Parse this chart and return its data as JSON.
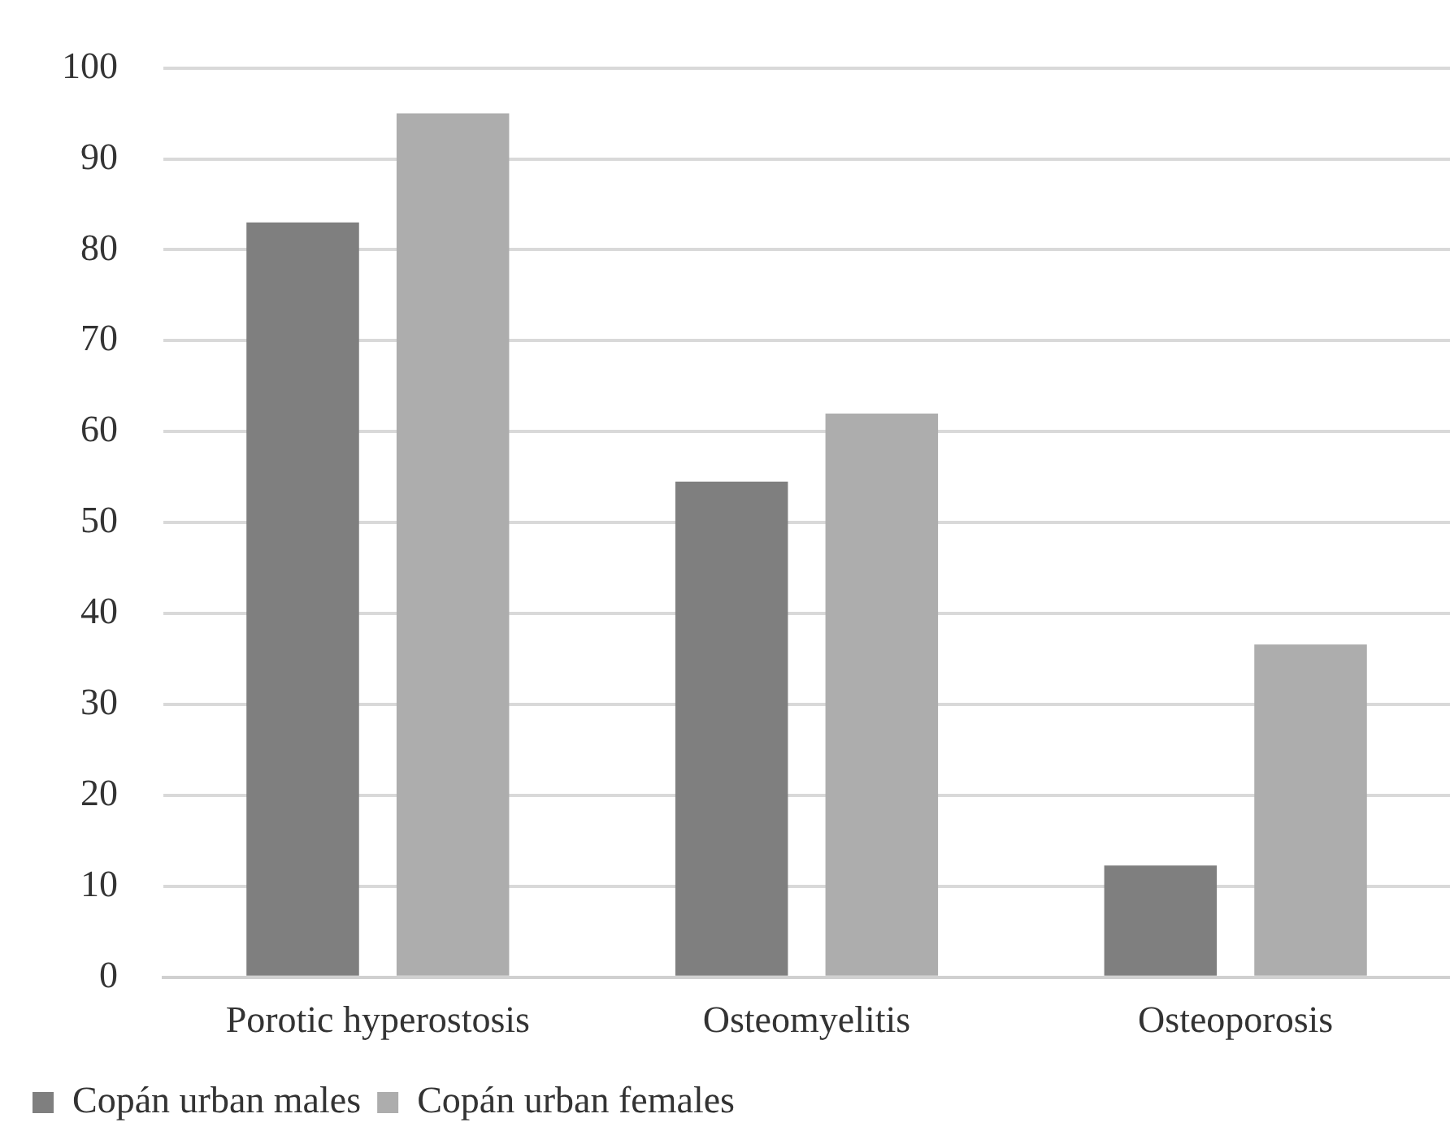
{
  "chart_data": {
    "type": "bar",
    "categories": [
      "Porotic hyperostosis",
      "Osteomyelitis",
      "Osteoporosis"
    ],
    "series": [
      {
        "name": "Copán urban males",
        "color": "#7f7f7f",
        "values": [
          83,
          54.5,
          12.3
        ]
      },
      {
        "name": "Copán urban females",
        "color": "#adadad",
        "values": [
          95,
          62,
          36.6
        ]
      }
    ],
    "ylim": [
      0,
      100
    ],
    "yticks": [
      0,
      10,
      20,
      30,
      40,
      50,
      60,
      70,
      80,
      90,
      100
    ],
    "grid": "y",
    "legend": "bottom left"
  }
}
